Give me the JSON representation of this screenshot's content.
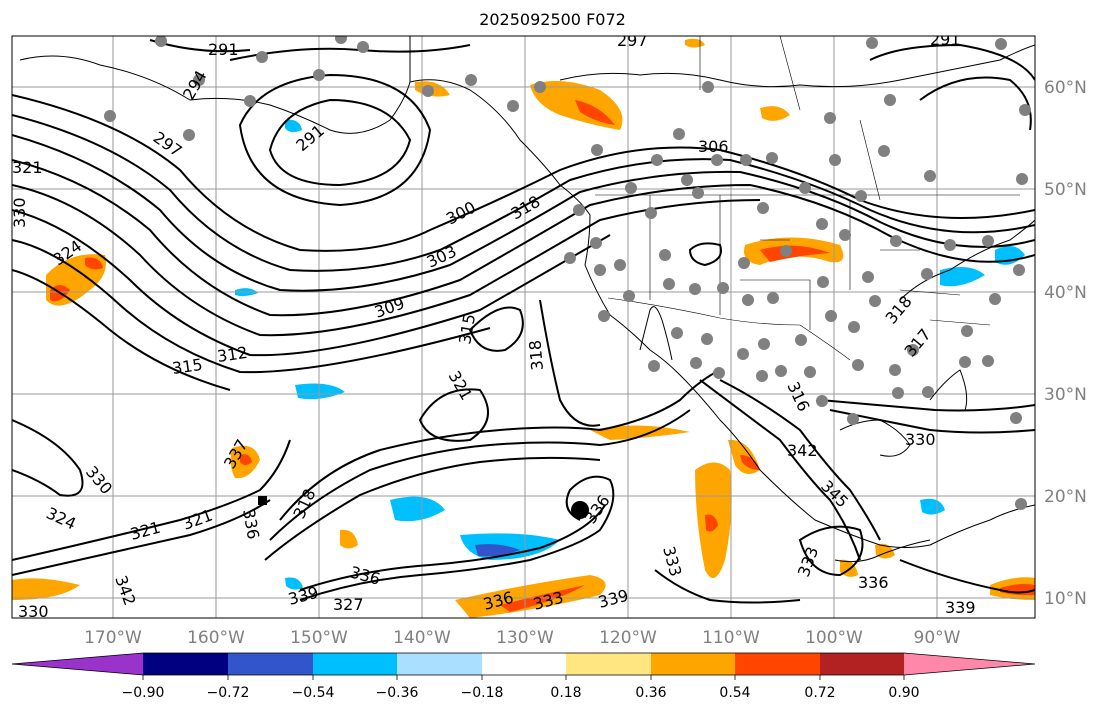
{
  "title": "2025092500 F072",
  "longitude_labels": [
    "170°W",
    "160°W",
    "150°W",
    "140°W",
    "130°W",
    "120°W",
    "110°W",
    "100°W",
    "90°W"
  ],
  "latitude_labels": [
    "60°N",
    "50°N",
    "40°N",
    "30°N",
    "20°N",
    "10°N"
  ],
  "contour_labels": [
    "291",
    "297",
    "291",
    "294",
    "297",
    "291",
    "306",
    "321",
    "330",
    "324",
    "300",
    "303",
    "309",
    "318",
    "315",
    "312",
    "315",
    "318",
    "321",
    "330",
    "337",
    "336",
    "324",
    "321",
    "321",
    "318",
    "336",
    "339",
    "327",
    "330",
    "342",
    "336",
    "333",
    "339",
    "333",
    "336",
    "316",
    "342",
    "345",
    "333",
    "336",
    "339",
    "330",
    "318",
    "317"
  ],
  "colorbar": {
    "tick_labels": [
      "−0.90",
      "−0.72",
      "−0.54",
      "−0.36",
      "−0.18",
      "0.18",
      "0.36",
      "0.54",
      "0.72",
      "0.90"
    ],
    "colors": [
      "#9933cc",
      "#000080",
      "#3355cc",
      "#00bfff",
      "#aadfff",
      "#ffffff",
      "#ffe680",
      "#ffa500",
      "#ff4500",
      "#b22222",
      "#ff88aa"
    ]
  }
}
